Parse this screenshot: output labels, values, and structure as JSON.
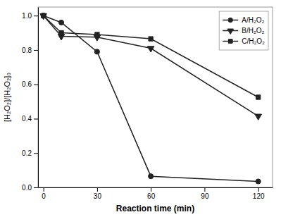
{
  "chart_data": {
    "type": "line",
    "x": [
      0,
      10,
      30,
      60,
      120
    ],
    "series": [
      {
        "name": "A/H₂O₂",
        "color": "#222222",
        "marker": "circle",
        "values": [
          1.0,
          0.96,
          0.79,
          0.065,
          0.035
        ]
      },
      {
        "name": "B/H₂O₂",
        "color": "#222222",
        "marker": "triangle-down",
        "values": [
          1.0,
          0.88,
          0.875,
          0.81,
          0.415
        ]
      },
      {
        "name": "C/H₂O₂",
        "color": "#222222",
        "marker": "square",
        "values": [
          1.0,
          0.9,
          0.89,
          0.865,
          0.525
        ]
      }
    ],
    "x_label": "Reaction time (min)",
    "y_label": "[H₂O₂]/[H₂O₂]₀",
    "xlim": [
      -3,
      128
    ],
    "ylim": [
      0.0,
      1.05
    ],
    "xticks": [
      0,
      30,
      60,
      90,
      120
    ],
    "yticks": [
      {
        "value": 0.0,
        "label": "0.0"
      },
      0.2,
      0.4,
      0.6,
      0.8,
      {
        "value": 1.0,
        "label": "1.0"
      }
    ],
    "legend": "upper right",
    "grid": false
  }
}
